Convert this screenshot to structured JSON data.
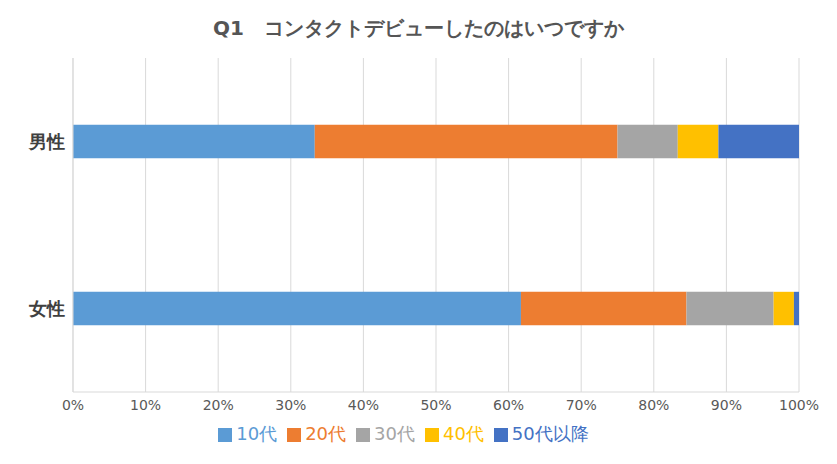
{
  "chart_data": {
    "type": "bar",
    "title": "Q1　コンタクトデビューしたのはいつですか",
    "orientation": "horizontal",
    "stacked": true,
    "categories": [
      "男性",
      "女性"
    ],
    "series": [
      {
        "name": "10代",
        "color": "#5b9bd5",
        "values": [
          33.3,
          61.7
        ]
      },
      {
        "name": "20代",
        "color": "#ed7d31",
        "values": [
          41.7,
          22.8
        ]
      },
      {
        "name": "30代",
        "color": "#a5a5a5",
        "values": [
          8.3,
          12.0
        ]
      },
      {
        "name": "40代",
        "color": "#ffc000",
        "values": [
          5.6,
          2.8
        ]
      },
      {
        "name": "50代以降",
        "color": "#4472c4",
        "values": [
          11.1,
          0.7
        ]
      }
    ],
    "xlim": [
      0,
      100
    ],
    "xticks": [
      {
        "value": 0,
        "label": "0%"
      },
      {
        "value": 10,
        "label": "10%"
      },
      {
        "value": 20,
        "label": "20%"
      },
      {
        "value": 30,
        "label": "30%"
      },
      {
        "value": 40,
        "label": "40%"
      },
      {
        "value": 50,
        "label": "50%"
      },
      {
        "value": 60,
        "label": "60%"
      },
      {
        "value": 70,
        "label": "70%"
      },
      {
        "value": 80,
        "label": "80%"
      },
      {
        "value": 90,
        "label": "90%"
      },
      {
        "value": 100,
        "label": "100%"
      }
    ],
    "grid": true,
    "legend": "bottom"
  }
}
